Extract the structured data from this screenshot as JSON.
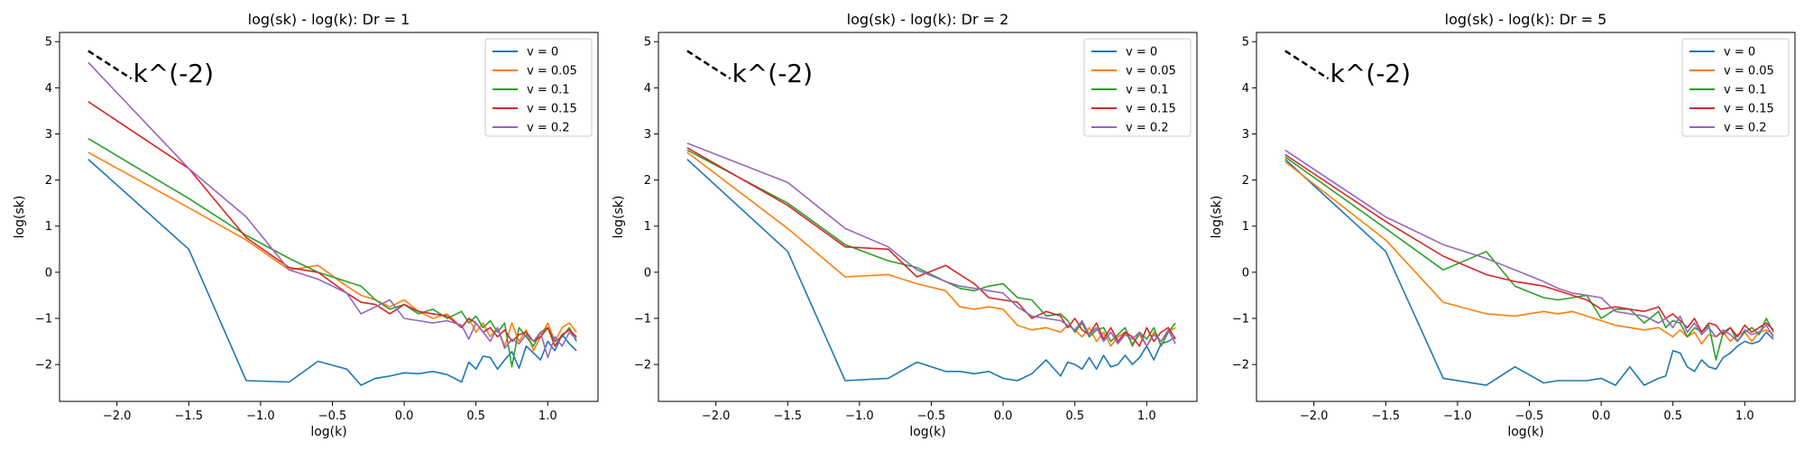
{
  "chart_data": [
    {
      "type": "line",
      "title": "log(sk) - log(k): Dr = 1",
      "xlabel": "log(k)",
      "ylabel": "log(sk)",
      "xlim": [
        -2.4,
        1.35
      ],
      "ylim": [
        -2.8,
        5.2
      ],
      "xticks": [
        -2.0,
        -1.5,
        -1.0,
        -0.5,
        0.0,
        0.5,
        1.0
      ],
      "xtick_labels": [
        "−2.0",
        "−1.5",
        "−1.0",
        "−0.5",
        "0.0",
        "0.5",
        "1.0"
      ],
      "yticks": [
        -2,
        -1,
        0,
        1,
        2,
        3,
        4,
        5
      ],
      "ytick_labels": [
        "−2",
        "−1",
        "0",
        "1",
        "2",
        "3",
        "4",
        "5"
      ],
      "grid": false,
      "legend_position": "upper-right",
      "reference_line": {
        "label": "k^(-2)",
        "x": [
          -2.2,
          -1.9
        ],
        "y": [
          4.8,
          4.2
        ]
      },
      "x": [
        -2.2,
        -1.5,
        -1.1,
        -0.8,
        -0.6,
        -0.4,
        -0.3,
        -0.2,
        -0.1,
        0.0,
        0.1,
        0.2,
        0.3,
        0.4,
        0.45,
        0.5,
        0.55,
        0.6,
        0.65,
        0.7,
        0.75,
        0.8,
        0.85,
        0.9,
        0.95,
        1.0,
        1.05,
        1.1,
        1.15,
        1.2
      ],
      "series": [
        {
          "name": "v = 0",
          "color": "#1f77b4",
          "values": [
            2.45,
            0.5,
            -2.35,
            -2.38,
            -1.93,
            -2.1,
            -2.45,
            -2.3,
            -2.25,
            -2.18,
            -2.2,
            -2.15,
            -2.22,
            -2.38,
            -1.95,
            -2.1,
            -1.82,
            -1.85,
            -2.1,
            -1.9,
            -1.72,
            -2.08,
            -1.6,
            -1.75,
            -1.9,
            -1.5,
            -1.7,
            -1.35,
            -1.55,
            -1.7
          ]
        },
        {
          "name": "v = 0.05",
          "color": "#ff7f0e",
          "values": [
            2.6,
            1.4,
            0.7,
            0.05,
            0.15,
            -0.3,
            -0.5,
            -0.6,
            -0.75,
            -0.6,
            -0.85,
            -1.0,
            -0.9,
            -1.2,
            -1.0,
            -1.3,
            -1.1,
            -1.4,
            -1.2,
            -1.6,
            -1.1,
            -1.5,
            -1.25,
            -1.7,
            -1.4,
            -1.1,
            -1.5,
            -1.2,
            -1.1,
            -1.3
          ]
        },
        {
          "name": "v = 0.1",
          "color": "#2ca02c",
          "values": [
            2.9,
            1.6,
            0.8,
            0.3,
            0.0,
            -0.2,
            -0.3,
            -0.6,
            -0.8,
            -0.7,
            -0.9,
            -0.8,
            -1.0,
            -0.85,
            -1.1,
            -0.95,
            -1.2,
            -1.05,
            -1.3,
            -1.1,
            -2.05,
            -1.2,
            -1.4,
            -1.6,
            -1.3,
            -1.2,
            -1.5,
            -1.4,
            -1.2,
            -1.5
          ]
        },
        {
          "name": "v = 0.15",
          "color": "#d62728",
          "values": [
            3.7,
            2.25,
            0.75,
            0.1,
            0.0,
            -0.45,
            -0.65,
            -0.7,
            -0.9,
            -0.7,
            -0.85,
            -0.9,
            -0.95,
            -1.2,
            -1.0,
            -1.1,
            -1.3,
            -1.2,
            -1.4,
            -1.25,
            -1.5,
            -1.35,
            -1.3,
            -1.5,
            -1.4,
            -1.2,
            -1.6,
            -1.35,
            -1.25,
            -1.4
          ]
        },
        {
          "name": "v = 0.2",
          "color": "#9467bd",
          "values": [
            4.55,
            2.25,
            1.2,
            0.05,
            -0.15,
            -0.45,
            -0.9,
            -0.75,
            -0.6,
            -1.0,
            -1.05,
            -1.1,
            -1.05,
            -1.15,
            -1.45,
            -1.1,
            -1.3,
            -1.5,
            -1.2,
            -1.65,
            -1.45,
            -1.55,
            -1.35,
            -1.5,
            -1.3,
            -1.85,
            -1.4,
            -1.6,
            -1.3,
            -1.45
          ]
        }
      ]
    },
    {
      "type": "line",
      "title": "log(sk) - log(k): Dr = 2",
      "xlabel": "log(k)",
      "ylabel": "log(sk)",
      "xlim": [
        -2.4,
        1.35
      ],
      "ylim": [
        -2.8,
        5.2
      ],
      "xticks": [
        -2.0,
        -1.5,
        -1.0,
        -0.5,
        0.0,
        0.5,
        1.0
      ],
      "xtick_labels": [
        "−2.0",
        "−1.5",
        "−1.0",
        "−0.5",
        "0.0",
        "0.5",
        "1.0"
      ],
      "yticks": [
        -2,
        -1,
        0,
        1,
        2,
        3,
        4,
        5
      ],
      "ytick_labels": [
        "−2",
        "−1",
        "0",
        "1",
        "2",
        "3",
        "4",
        "5"
      ],
      "grid": false,
      "legend_position": "upper-right",
      "reference_line": {
        "label": "k^(-2)",
        "x": [
          -2.2,
          -1.9
        ],
        "y": [
          4.8,
          4.2
        ]
      },
      "x": [
        -2.2,
        -1.5,
        -1.1,
        -0.8,
        -0.6,
        -0.4,
        -0.3,
        -0.2,
        -0.1,
        0.0,
        0.1,
        0.2,
        0.3,
        0.4,
        0.45,
        0.5,
        0.55,
        0.6,
        0.65,
        0.7,
        0.75,
        0.8,
        0.85,
        0.9,
        0.95,
        1.0,
        1.05,
        1.1,
        1.15,
        1.2
      ],
      "series": [
        {
          "name": "v = 0",
          "color": "#1f77b4",
          "values": [
            2.45,
            0.45,
            -2.35,
            -2.3,
            -1.95,
            -2.15,
            -2.15,
            -2.2,
            -2.15,
            -2.3,
            -2.35,
            -2.2,
            -1.9,
            -2.25,
            -1.95,
            -2.0,
            -2.1,
            -1.85,
            -2.1,
            -1.8,
            -2.05,
            -2.0,
            -1.8,
            -2.0,
            -1.85,
            -1.6,
            -1.9,
            -1.55,
            -1.5,
            -1.4
          ]
        },
        {
          "name": "v = 0.05",
          "color": "#ff7f0e",
          "values": [
            2.6,
            0.95,
            -0.1,
            -0.05,
            -0.25,
            -0.4,
            -0.75,
            -0.8,
            -0.75,
            -0.8,
            -1.15,
            -1.25,
            -1.2,
            -1.3,
            -1.15,
            -1.25,
            -1.4,
            -1.2,
            -1.5,
            -1.3,
            -1.6,
            -1.4,
            -1.3,
            -1.55,
            -1.35,
            -1.6,
            -1.3,
            -1.5,
            -1.3,
            -1.2
          ]
        },
        {
          "name": "v = 0.1",
          "color": "#2ca02c",
          "values": [
            2.65,
            1.5,
            0.6,
            0.25,
            0.1,
            -0.2,
            -0.35,
            -0.4,
            -0.3,
            -0.25,
            -0.55,
            -0.6,
            -0.95,
            -0.9,
            -1.05,
            -1.3,
            -1.1,
            -1.4,
            -1.25,
            -1.2,
            -1.5,
            -1.35,
            -1.2,
            -1.6,
            -1.3,
            -1.45,
            -1.2,
            -1.6,
            -1.3,
            -1.1
          ]
        },
        {
          "name": "v = 0.15",
          "color": "#d62728",
          "values": [
            2.7,
            1.45,
            0.55,
            0.5,
            -0.1,
            0.15,
            -0.05,
            -0.25,
            -0.55,
            -0.6,
            -0.65,
            -1.0,
            -0.85,
            -0.95,
            -1.2,
            -1.0,
            -1.25,
            -1.35,
            -1.1,
            -1.45,
            -1.2,
            -1.5,
            -1.3,
            -1.4,
            -1.6,
            -1.2,
            -1.5,
            -1.3,
            -1.2,
            -1.45
          ]
        },
        {
          "name": "v = 0.2",
          "color": "#9467bd",
          "values": [
            2.8,
            1.95,
            0.95,
            0.55,
            0.05,
            -0.2,
            -0.3,
            -0.35,
            -0.4,
            -0.45,
            -0.75,
            -0.95,
            -1.0,
            -1.05,
            -1.15,
            -1.25,
            -1.05,
            -1.35,
            -1.2,
            -1.5,
            -1.3,
            -1.55,
            -1.35,
            -1.45,
            -1.3,
            -1.6,
            -1.35,
            -1.5,
            -1.25,
            -1.55
          ]
        }
      ]
    },
    {
      "type": "line",
      "title": "log(sk) - log(k): Dr = 5",
      "xlabel": "log(k)",
      "ylabel": "log(sk)",
      "xlim": [
        -2.4,
        1.35
      ],
      "ylim": [
        -2.8,
        5.2
      ],
      "xticks": [
        -2.0,
        -1.5,
        -1.0,
        -0.5,
        0.0,
        0.5,
        1.0
      ],
      "xtick_labels": [
        "−2.0",
        "−1.5",
        "−1.0",
        "−0.5",
        "0.0",
        "0.5",
        "1.0"
      ],
      "yticks": [
        -2,
        -1,
        0,
        1,
        2,
        3,
        4,
        5
      ],
      "ytick_labels": [
        "−2",
        "−1",
        "0",
        "1",
        "2",
        "3",
        "4",
        "5"
      ],
      "grid": false,
      "legend_position": "upper-right",
      "reference_line": {
        "label": "k^(-2)",
        "x": [
          -2.2,
          -1.9
        ],
        "y": [
          4.8,
          4.2
        ]
      },
      "x": [
        -2.2,
        -1.5,
        -1.1,
        -0.8,
        -0.6,
        -0.4,
        -0.3,
        -0.2,
        -0.1,
        0.0,
        0.1,
        0.2,
        0.3,
        0.4,
        0.45,
        0.5,
        0.55,
        0.6,
        0.65,
        0.7,
        0.75,
        0.8,
        0.85,
        0.9,
        0.95,
        1.0,
        1.05,
        1.1,
        1.15,
        1.2
      ],
      "series": [
        {
          "name": "v = 0",
          "color": "#1f77b4",
          "values": [
            2.45,
            0.45,
            -2.3,
            -2.45,
            -2.05,
            -2.4,
            -2.35,
            -2.35,
            -2.35,
            -2.3,
            -2.45,
            -2.05,
            -2.45,
            -2.3,
            -2.25,
            -1.7,
            -1.75,
            -2.05,
            -2.15,
            -1.9,
            -2.05,
            -2.1,
            -1.85,
            -1.75,
            -1.6,
            -1.5,
            -1.55,
            -1.5,
            -1.3,
            -1.45
          ]
        },
        {
          "name": "v = 0.05",
          "color": "#ff7f0e",
          "values": [
            2.4,
            0.7,
            -0.65,
            -0.9,
            -0.95,
            -0.85,
            -0.9,
            -0.85,
            -0.95,
            -1.05,
            -1.15,
            -1.2,
            -1.25,
            -1.2,
            -1.3,
            -1.4,
            -1.25,
            -1.4,
            -1.3,
            -1.55,
            -1.35,
            -1.4,
            -1.3,
            -1.5,
            -1.35,
            -1.3,
            -1.5,
            -1.3,
            -1.25,
            -1.35
          ]
        },
        {
          "name": "v = 0.1",
          "color": "#2ca02c",
          "values": [
            2.5,
            0.95,
            0.05,
            0.45,
            -0.3,
            -0.55,
            -0.6,
            -0.55,
            -0.5,
            -1.0,
            -0.8,
            -0.8,
            -1.1,
            -0.85,
            -1.2,
            -1.05,
            -1.1,
            -1.4,
            -1.2,
            -1.3,
            -1.15,
            -1.9,
            -1.3,
            -1.2,
            -1.5,
            -1.3,
            -1.2,
            -1.35,
            -1.0,
            -1.3
          ]
        },
        {
          "name": "v = 0.15",
          "color": "#d62728",
          "values": [
            2.55,
            1.1,
            0.35,
            -0.05,
            -0.2,
            -0.3,
            -0.4,
            -0.5,
            -0.6,
            -0.8,
            -0.75,
            -0.8,
            -0.85,
            -0.75,
            -1.0,
            -0.9,
            -1.05,
            -1.2,
            -1.0,
            -1.3,
            -1.1,
            -1.15,
            -1.35,
            -1.2,
            -1.4,
            -1.15,
            -1.3,
            -1.2,
            -1.1,
            -1.25
          ]
        },
        {
          "name": "v = 0.2",
          "color": "#9467bd",
          "values": [
            2.65,
            1.2,
            0.6,
            0.3,
            0.05,
            -0.2,
            -0.35,
            -0.45,
            -0.5,
            -0.55,
            -0.85,
            -0.9,
            -0.95,
            -1.1,
            -1.0,
            -1.2,
            -0.95,
            -1.3,
            -1.1,
            -1.35,
            -1.2,
            -1.4,
            -1.25,
            -1.35,
            -1.5,
            -1.25,
            -1.35,
            -1.3,
            -1.15,
            -1.4
          ]
        }
      ]
    }
  ]
}
